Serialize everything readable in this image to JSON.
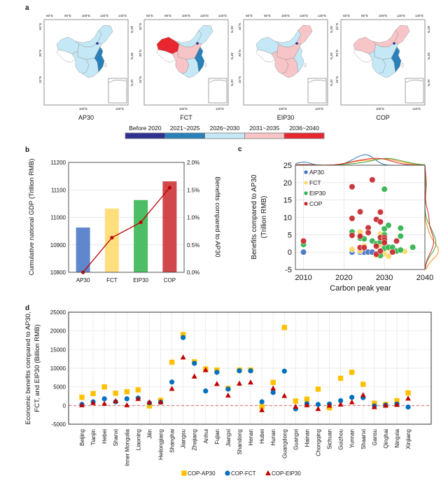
{
  "panel_labels": {
    "a": "a",
    "b": "b",
    "c": "c",
    "d": "d"
  },
  "colors": {
    "Before 2020": "#2e3192",
    "2021~2025": "#2a80b9",
    "2026~2030": "#c5e8f7",
    "2031~2035": "#f7c5c7",
    "2036~2040": "#e8262f",
    "AP30": "#4472c4",
    "FCT": "#ffd966",
    "EIP30": "#2eb34a",
    "COP": "#c8282d",
    "kde_AP30": "#2e75b6",
    "kde_FCT": "#ff8c1a",
    "kde_EIP30": "#3aa53a",
    "kde_COP": "#d62728",
    "d_square": "#ffc000",
    "d_circle": "#0070c0",
    "d_triangle": "#c00000",
    "zero_line": "#e06666"
  },
  "maps": {
    "axis_labels": {
      "top": [
        "60°E",
        "80°E",
        "100°E",
        "120°E",
        "140°E"
      ],
      "bottom": [
        "100°E",
        "120°E"
      ],
      "lat": [
        "45°N",
        "30°N",
        "15°N"
      ]
    },
    "panels": [
      {
        "name": "AP30",
        "regions": {
          "west": "2026~2030",
          "north": "2026~2030",
          "northeast": "2026~2030",
          "central": "2026~2030",
          "southwest": "2026~2030",
          "south": "2026~2030",
          "coast": "2021~2025",
          "beijing": "Before 2020"
        }
      },
      {
        "name": "FCT",
        "regions": {
          "west": "2036~2040",
          "north": "2026~2030",
          "northeast": "2026~2030",
          "central": "2031~2035",
          "southwest": "2031~2035",
          "south": "2026~2030",
          "coast": "2021~2025",
          "beijing": "Before 2020"
        }
      },
      {
        "name": "EIP30",
        "regions": {
          "west": "2026~2030",
          "north": "2026~2030",
          "northeast": "2031~2035",
          "central": "2031~2035",
          "southwest": "2031~2035",
          "south": "2031~2035",
          "coast": "2026~2030",
          "beijing": "Before 2020"
        }
      },
      {
        "name": "COP",
        "regions": {
          "west": "2031~2035",
          "north": "2031~2035",
          "northeast": "2031~2035",
          "central": "2026~2030",
          "southwest": "2026~2030",
          "south": "2026~2030",
          "coast": "2021~2025",
          "beijing": "Before 2020"
        }
      }
    ],
    "legend": [
      "Before 2020",
      "2021~2025",
      "2026~2030",
      "2031~2035",
      "2036~2040"
    ]
  },
  "chart_data": [
    {
      "id": "b",
      "type": "bar",
      "categories": [
        "AP30",
        "FCT",
        "EIP30",
        "COP"
      ],
      "values": [
        10963,
        11032,
        11063,
        11131
      ],
      "ylabel": "Cumulative national GDP (Trillion RMB)",
      "ylim": [
        10800,
        11200
      ],
      "yticks": [
        "10800",
        "10900",
        "11000",
        "11100",
        "11200"
      ],
      "line_series": {
        "values": [
          0.0,
          0.63,
          0.91,
          1.54
        ],
        "unit": "%"
      },
      "y2label": "Benefits compared to AP30",
      "y2lim": [
        0,
        2.0
      ],
      "y2ticks": [
        "0.0%",
        "0.5%",
        "1.0%",
        "1.5%",
        "2.0%"
      ],
      "grid": true
    },
    {
      "id": "c",
      "type": "scatter",
      "xlabel": "Carbon peak year",
      "ylabel": [
        "Benefits compared to AP30",
        "(Trillion RMB)"
      ],
      "xlim": [
        2008,
        2040
      ],
      "ylim": [
        -5,
        25
      ],
      "xticks": [
        "2010",
        "2020",
        "2030",
        "2040"
      ],
      "yticks": [
        "-5",
        "0",
        "5",
        "10",
        "15",
        "20",
        "25"
      ],
      "legend_position": "top-left",
      "marginal_density": true,
      "grid": true,
      "series": [
        {
          "name": "AP30",
          "points": [
            [
              2010,
              0
            ],
            [
              2022,
              0
            ],
            [
              2024,
              0
            ],
            [
              2025,
              0
            ],
            [
              2026,
              0
            ],
            [
              2027,
              0
            ]
          ]
        },
        {
          "name": "FCT",
          "points": [
            [
              2022,
              0.8
            ],
            [
              2024,
              5.8
            ],
            [
              2024,
              0.4
            ],
            [
              2025,
              1.8
            ],
            [
              2028,
              -1
            ],
            [
              2029,
              5.2
            ],
            [
              2029,
              2.2
            ],
            [
              2030,
              -0.5
            ],
            [
              2031,
              -1.2
            ],
            [
              2031,
              1
            ],
            [
              2033,
              0.3
            ],
            [
              2035,
              0.2
            ]
          ]
        },
        {
          "name": "EIP30",
          "points": [
            [
              2010,
              2.2
            ],
            [
              2022,
              5.8
            ],
            [
              2024,
              4
            ],
            [
              2025,
              3.8
            ],
            [
              2027,
              3.2
            ],
            [
              2028,
              2.4
            ],
            [
              2029,
              3
            ],
            [
              2029,
              -1
            ],
            [
              2030,
              18.1
            ],
            [
              2030,
              6.7
            ],
            [
              2030,
              5
            ],
            [
              2030,
              1.1
            ],
            [
              2031,
              7.7
            ],
            [
              2031,
              1.4
            ],
            [
              2032,
              1.4
            ],
            [
              2033,
              0.3
            ],
            [
              2034,
              6.9
            ],
            [
              2034,
              4.6
            ],
            [
              2034,
              0.6
            ],
            [
              2037,
              1.4
            ]
          ]
        },
        {
          "name": "COP",
          "points": [
            [
              2010,
              3.2
            ],
            [
              2022,
              18.8
            ],
            [
              2022,
              9.7
            ],
            [
              2022,
              4.8
            ],
            [
              2024,
              11.6
            ],
            [
              2024,
              4.6
            ],
            [
              2024,
              1.3
            ],
            [
              2025,
              1.3
            ],
            [
              2026,
              7
            ],
            [
              2026,
              5.6
            ],
            [
              2027,
              20.8
            ],
            [
              2028,
              9.4
            ],
            [
              2028,
              1.7
            ],
            [
              2028,
              -0.6
            ],
            [
              2029,
              11.5
            ],
            [
              2029,
              8.7
            ],
            [
              2029,
              4.2
            ],
            [
              2029,
              0.3
            ],
            [
              2030,
              4.2
            ],
            [
              2030,
              3.5
            ],
            [
              2030,
              2.7
            ],
            [
              2032,
              0
            ],
            [
              2033,
              3.2
            ]
          ]
        }
      ]
    },
    {
      "id": "d",
      "type": "scatter",
      "ylabel": [
        "Economic benefits compared to AP30,",
        "FCT, and EIP30 (Billion RMB)"
      ],
      "ylim": [
        -5000,
        25000
      ],
      "yticks": [
        "-5000",
        "0",
        "5000",
        "10000",
        "15000",
        "20000",
        "25000"
      ],
      "grid": true,
      "legend_position": "bottom",
      "categories": [
        "Beijing",
        "Tianjin",
        "Hebei",
        "Shanxi",
        "Inner Mongolia",
        "Liaoning",
        "Jilin",
        "Heilongjiang",
        "Shanghai",
        "Jiangsu",
        "Zhejiang",
        "Anhui",
        "Fujian",
        "Jiangxi",
        "Shandong",
        "Henan",
        "Hubei",
        "Hunan",
        "Guangdong",
        "Guangxi",
        "Hainan",
        "Chongqing",
        "Sichuan",
        "Guizhou",
        "Yunnan",
        "Shaanxi",
        "Gansu",
        "Qinghai",
        "Ningxia",
        "Xinjiang"
      ],
      "series": [
        {
          "name": "COP-AP30",
          "marker": "square",
          "values": [
            2200,
            3200,
            5000,
            3300,
            3700,
            4200,
            -100,
            1400,
            11600,
            19000,
            11700,
            9800,
            9500,
            4600,
            9500,
            9500,
            -300,
            6200,
            20900,
            1200,
            1700,
            4400,
            -600,
            7300,
            8900,
            5700,
            600,
            300,
            1300,
            3400
          ]
        },
        {
          "name": "COP-FCT",
          "marker": "circle",
          "values": [
            300,
            1000,
            1800,
            1000,
            1800,
            2000,
            700,
            900,
            6300,
            18200,
            11300,
            3900,
            8900,
            4400,
            9300,
            9300,
            1000,
            3500,
            9200,
            -900,
            500,
            300,
            400,
            1300,
            2200,
            2100,
            -100,
            100,
            400,
            -400
          ]
        },
        {
          "name": "COP-EIP30",
          "marker": "triangle",
          "values": [
            100,
            700,
            500,
            1200,
            100,
            1800,
            900,
            900,
            4500,
            12900,
            7800,
            9500,
            5800,
            2700,
            5900,
            6200,
            -1200,
            4600,
            2600,
            -300,
            100,
            -900,
            0,
            300,
            900,
            2800,
            -400,
            0,
            200,
            1900
          ]
        }
      ]
    }
  ]
}
